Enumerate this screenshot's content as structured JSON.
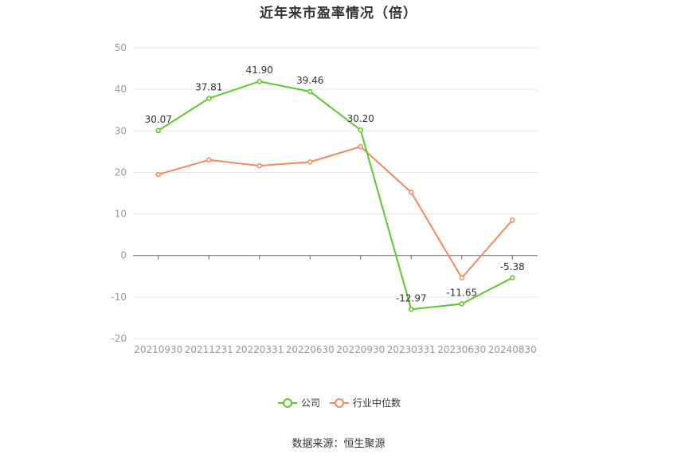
{
  "chart_data": {
    "type": "line",
    "title": "近年来市盈率情况（倍）",
    "categories": [
      "20210930",
      "20211231",
      "20220331",
      "20220630",
      "20220930",
      "20230331",
      "20230630",
      "20240830"
    ],
    "ylim": [
      -20,
      50
    ],
    "yticks": [
      -20,
      -10,
      0,
      10,
      20,
      30,
      40,
      50
    ],
    "grid": true,
    "legend_position": "bottom",
    "series": [
      {
        "name": "公司",
        "color": "#5dc82b",
        "values": [
          30.07,
          37.81,
          41.9,
          39.46,
          30.2,
          -12.97,
          -11.65,
          -5.38
        ],
        "labels": [
          "30.07",
          "37.81",
          "41.90",
          "39.46",
          "30.20",
          "-12.97",
          "-11.65",
          "-5.38"
        ]
      },
      {
        "name": "行业中位数",
        "color": "#f28a5e",
        "values": [
          19.5,
          23.0,
          21.6,
          22.5,
          26.2,
          15.2,
          -5.4,
          8.5
        ]
      }
    ]
  },
  "source_note": "数据来源：恒生聚源"
}
